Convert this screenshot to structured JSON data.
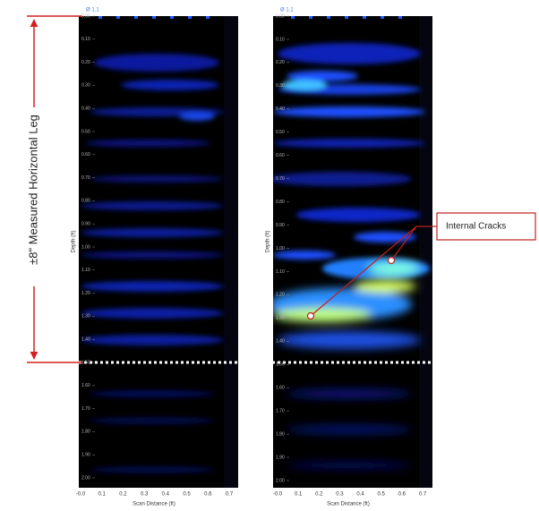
{
  "bracket_label": "±8\" Measured Horizontal Leg",
  "callout": "Internal Cracks",
  "panels": [
    {
      "header": "Ø 1.1",
      "y_axis_label": "Depth (ft)",
      "x_axis_label": "Scan Distance (ft)",
      "y_ticks": [
        "0.00",
        "0.10",
        "0.20",
        "0.30",
        "0.40",
        "0.50",
        "0.60",
        "0.70",
        "0.80",
        "0.90",
        "1.00",
        "1.10",
        "1.20",
        "1.30",
        "1.40",
        "1.50",
        "1.60",
        "1.70",
        "1.80",
        "1.90",
        "2.00"
      ],
      "x_ticks": [
        "-0.0",
        "0.1",
        "0.2",
        "0.3",
        "0.4",
        "0.5",
        "0.6",
        "0.7"
      ]
    },
    {
      "header": "Ø 1.1",
      "y_axis_label": "Depth (ft)",
      "x_axis_label": "Scan Distance (ft)",
      "y_ticks": [
        "0.00",
        "0.10",
        "0.20",
        "0.30",
        "0.40",
        "0.50",
        "0.60",
        "0.70",
        "0.80",
        "0.90",
        "1.00",
        "1.10",
        "1.20",
        "1.30",
        "1.40",
        "1.50",
        "1.60",
        "1.70",
        "1.80",
        "1.90",
        "2.00"
      ],
      "x_ticks": [
        "-0.0",
        "0.1",
        "0.2",
        "0.3",
        "0.4",
        "0.5",
        "0.6",
        "0.7"
      ]
    }
  ]
}
